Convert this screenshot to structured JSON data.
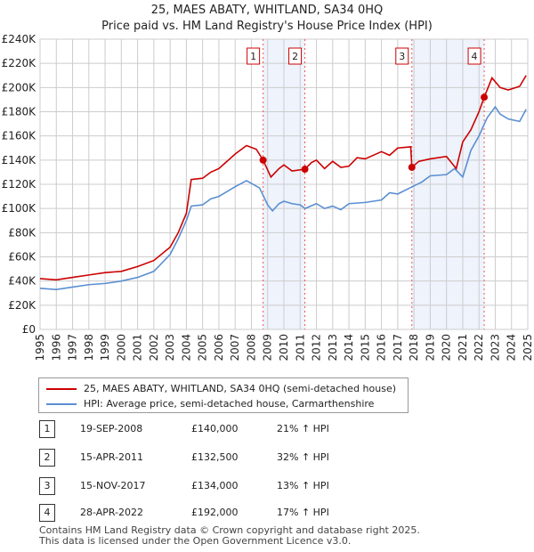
{
  "title": "25, MAES ABATY, WHITLAND, SA34 0HQ",
  "subtitle": "Price paid vs. HM Land Registry's House Price Index (HPI)",
  "chart_data": {
    "type": "line",
    "title": "25, MAES ABATY, WHITLAND, SA34 0HQ",
    "xlim": [
      1995,
      2025
    ],
    "ylim": [
      0,
      240000
    ],
    "ytick_labels": [
      "£0",
      "£20K",
      "£40K",
      "£60K",
      "£80K",
      "£100K",
      "£120K",
      "£140K",
      "£160K",
      "£180K",
      "£200K",
      "£220K",
      "£240K"
    ],
    "xtick_labels": [
      "1995",
      "1996",
      "1997",
      "1998",
      "1999",
      "2000",
      "2001",
      "2002",
      "2003",
      "2004",
      "2005",
      "2006",
      "2007",
      "2008",
      "2009",
      "2010",
      "2011",
      "2012",
      "2013",
      "2014",
      "2015",
      "2016",
      "2017",
      "2018",
      "2019",
      "2020",
      "2021",
      "2022",
      "2023",
      "2024",
      "2025"
    ],
    "grid": true,
    "series": [
      {
        "name": "25, MAES ABATY, WHITLAND, SA34 0HQ (semi-detached house)",
        "color": "#cc0000",
        "x": [
          1995,
          1996,
          1997,
          1998,
          1999,
          2000,
          2001,
          2002,
          2003,
          2003.5,
          2004,
          2004.3,
          2005,
          2005.5,
          2006,
          2007,
          2007.7,
          2008.3,
          2008.72,
          2009.2,
          2009.7,
          2010,
          2010.5,
          2011.29,
          2011.7,
          2012,
          2012.5,
          2013,
          2013.5,
          2014,
          2014.5,
          2015,
          2016,
          2016.5,
          2017,
          2017.8,
          2017.87,
          2018.3,
          2019,
          2020,
          2020.6,
          2021,
          2021.5,
          2022,
          2022.32,
          2022.8,
          2023.3,
          2023.8,
          2024.5,
          2024.9
        ],
        "y": [
          42000,
          41000,
          43000,
          45000,
          47000,
          48000,
          52000,
          57000,
          68000,
          80000,
          96000,
          124000,
          125000,
          130000,
          133000,
          145000,
          152000,
          149000,
          140000,
          126000,
          133000,
          136000,
          131000,
          132500,
          138000,
          140000,
          133000,
          139000,
          134000,
          135000,
          142000,
          141000,
          147000,
          144000,
          150000,
          151000,
          134000,
          139000,
          141000,
          143000,
          133000,
          155000,
          165000,
          180000,
          192000,
          208000,
          200000,
          198000,
          201000,
          210000
        ]
      },
      {
        "name": "HPI: Average price, semi-detached house, Carmarthenshire",
        "color": "#5b8fd1",
        "x": [
          1995,
          1996,
          1997,
          1998,
          1999,
          2000,
          2001,
          2002,
          2003,
          2003.5,
          2004,
          2004.3,
          2005,
          2005.5,
          2006,
          2007,
          2007.7,
          2008.5,
          2009,
          2009.3,
          2009.7,
          2010,
          2010.5,
          2011,
          2011.3,
          2012,
          2012.5,
          2013,
          2013.5,
          2014,
          2015,
          2016,
          2016.5,
          2017,
          2017.9,
          2018.5,
          2019,
          2020,
          2020.5,
          2021,
          2021.5,
          2022,
          2022.5,
          2023,
          2023.3,
          2023.8,
          2024.5,
          2024.9
        ],
        "y": [
          34000,
          33000,
          35000,
          37000,
          38000,
          40000,
          43000,
          48000,
          62000,
          75000,
          90000,
          102000,
          103000,
          108000,
          110000,
          118000,
          123000,
          117000,
          103000,
          98000,
          104000,
          106000,
          104000,
          103000,
          100000,
          104000,
          100000,
          102000,
          99000,
          104000,
          105000,
          107000,
          113000,
          112000,
          118000,
          122000,
          127000,
          128000,
          133000,
          126000,
          148000,
          160000,
          175000,
          184000,
          178000,
          174000,
          172000,
          182000
        ]
      }
    ],
    "sales": [
      {
        "label": "1",
        "x": 2008.72,
        "y": 140000
      },
      {
        "label": "2",
        "x": 2011.29,
        "y": 132500
      },
      {
        "label": "3",
        "x": 2017.87,
        "y": 134000
      },
      {
        "label": "4",
        "x": 2022.32,
        "y": 192000
      }
    ],
    "shaded": [
      [
        2008.72,
        2011.29
      ],
      [
        2017.87,
        2022.32
      ]
    ]
  },
  "legend": {
    "red": "25, MAES ABATY, WHITLAND, SA34 0HQ (semi-detached house)",
    "blue": "HPI: Average price, semi-detached house, Carmarthenshire"
  },
  "table": [
    {
      "n": "1",
      "date": "19-SEP-2008",
      "price": "£140,000",
      "hpi": "21% ↑ HPI"
    },
    {
      "n": "2",
      "date": "15-APR-2011",
      "price": "£132,500",
      "hpi": "32% ↑ HPI"
    },
    {
      "n": "3",
      "date": "15-NOV-2017",
      "price": "£134,000",
      "hpi": "13% ↑ HPI"
    },
    {
      "n": "4",
      "date": "28-APR-2022",
      "price": "£192,000",
      "hpi": "17% ↑ HPI"
    }
  ],
  "footer": [
    "Contains HM Land Registry data © Crown copyright and database right 2025.",
    "This data is licensed under the Open Government Licence v3.0."
  ]
}
